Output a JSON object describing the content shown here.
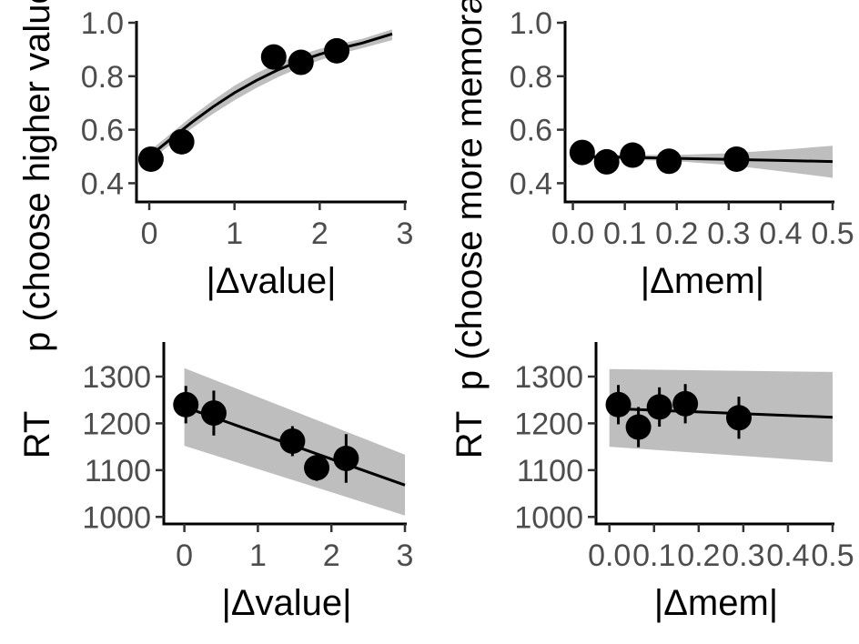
{
  "chart_data": [
    {
      "type": "scatter",
      "xlabel": "|Δvalue|",
      "ylabel": "p (choose higher value)",
      "xlim": [
        -0.15,
        3.0
      ],
      "ylim": [
        0.33,
        1.0
      ],
      "xticks": [
        0,
        1,
        2,
        3
      ],
      "yticks": [
        0.4,
        0.6,
        0.8,
        1.0
      ],
      "xtick_labels": [
        "0",
        "1",
        "2",
        "3"
      ],
      "ytick_labels": [
        "0.4",
        "0.6",
        "0.8",
        "1.0"
      ],
      "points": [
        {
          "x": 0.02,
          "y": 0.49
        },
        {
          "x": 0.38,
          "y": 0.555
        },
        {
          "x": 1.46,
          "y": 0.872
        },
        {
          "x": 1.78,
          "y": 0.852
        },
        {
          "x": 2.2,
          "y": 0.895
        }
      ],
      "fit": {
        "x": [
          0,
          0.25,
          0.5,
          0.75,
          1.0,
          1.25,
          1.5,
          1.75,
          2.0,
          2.25,
          2.5,
          2.85
        ],
        "y": [
          0.5,
          0.565,
          0.628,
          0.686,
          0.738,
          0.783,
          0.822,
          0.855,
          0.882,
          0.905,
          0.924,
          0.958
        ],
        "lower": [
          0.48,
          0.545,
          0.605,
          0.66,
          0.71,
          0.755,
          0.795,
          0.83,
          0.86,
          0.885,
          0.905,
          0.935
        ],
        "upper": [
          0.52,
          0.585,
          0.65,
          0.71,
          0.765,
          0.81,
          0.848,
          0.878,
          0.902,
          0.922,
          0.94,
          0.975
        ]
      },
      "grid": false,
      "legend": "none"
    },
    {
      "type": "scatter",
      "xlabel": "|Δmem|",
      "ylabel": "p (choose more memorable)",
      "xlim": [
        -0.015,
        0.5
      ],
      "ylim": [
        0.33,
        1.0
      ],
      "xticks": [
        0.0,
        0.1,
        0.2,
        0.3,
        0.4,
        0.5
      ],
      "yticks": [
        0.4,
        0.6,
        0.8,
        1.0
      ],
      "xtick_labels": [
        "0.0",
        "0.1",
        "0.2",
        "0.3",
        "0.4",
        "0.5"
      ],
      "ytick_labels": [
        "0.4",
        "0.6",
        "0.8",
        "1.0"
      ],
      "points": [
        {
          "x": 0.018,
          "y": 0.515
        },
        {
          "x": 0.065,
          "y": 0.48
        },
        {
          "x": 0.115,
          "y": 0.505
        },
        {
          "x": 0.185,
          "y": 0.482
        },
        {
          "x": 0.315,
          "y": 0.49
        }
      ],
      "fit": {
        "x": [
          0.0,
          0.1,
          0.2,
          0.3,
          0.4,
          0.5
        ],
        "y": [
          0.5,
          0.497,
          0.493,
          0.489,
          0.485,
          0.481
        ],
        "lower": [
          0.49,
          0.488,
          0.482,
          0.468,
          0.445,
          0.42
        ],
        "upper": [
          0.51,
          0.506,
          0.506,
          0.512,
          0.525,
          0.54
        ]
      },
      "grid": false,
      "legend": "none"
    },
    {
      "type": "scatter",
      "xlabel": "|Δvalue|",
      "ylabel": "RT",
      "xlim": [
        -0.28,
        3.0
      ],
      "ylim": [
        985,
        1370
      ],
      "xticks": [
        0,
        1,
        2,
        3
      ],
      "yticks": [
        1000,
        1100,
        1200,
        1300
      ],
      "xtick_labels": [
        "0",
        "1",
        "2",
        "3"
      ],
      "ytick_labels": [
        "1000",
        "1100",
        "1200",
        "1300"
      ],
      "points": [
        {
          "x": 0.02,
          "y": 1240,
          "err": 40
        },
        {
          "x": 0.4,
          "y": 1222,
          "err": 48
        },
        {
          "x": 1.47,
          "y": 1162,
          "err": 32
        },
        {
          "x": 1.8,
          "y": 1105,
          "err": 28
        },
        {
          "x": 2.2,
          "y": 1125,
          "err": 52
        }
      ],
      "fit": {
        "x": [
          0.0,
          3.0
        ],
        "y": [
          1235,
          1068
        ],
        "lower": [
          1152,
          1003
        ],
        "upper": [
          1318,
          1133
        ]
      },
      "grid": false,
      "legend": "none"
    },
    {
      "type": "scatter",
      "xlabel": "|Δmem|",
      "ylabel": "RT",
      "xlim": [
        -0.03,
        0.5
      ],
      "ylim": [
        985,
        1370
      ],
      "xticks": [
        0.0,
        0.1,
        0.2,
        0.3,
        0.4,
        0.5
      ],
      "yticks": [
        1000,
        1100,
        1200,
        1300
      ],
      "xtick_labels": [
        "0.0",
        "0.1",
        "0.2",
        "0.3",
        "0.4",
        "0.5"
      ],
      "ytick_labels": [
        "1000",
        "1100",
        "1200",
        "1300"
      ],
      "points": [
        {
          "x": 0.02,
          "y": 1240,
          "err": 42
        },
        {
          "x": 0.065,
          "y": 1192,
          "err": 43
        },
        {
          "x": 0.112,
          "y": 1235,
          "err": 42
        },
        {
          "x": 0.17,
          "y": 1242,
          "err": 42
        },
        {
          "x": 0.29,
          "y": 1212,
          "err": 45
        }
      ],
      "fit": {
        "x": [
          0.0,
          0.5
        ],
        "y": [
          1232,
          1213
        ],
        "lower": [
          1150,
          1117
        ],
        "upper": [
          1316,
          1310
        ]
      },
      "grid": false,
      "legend": "none"
    }
  ]
}
